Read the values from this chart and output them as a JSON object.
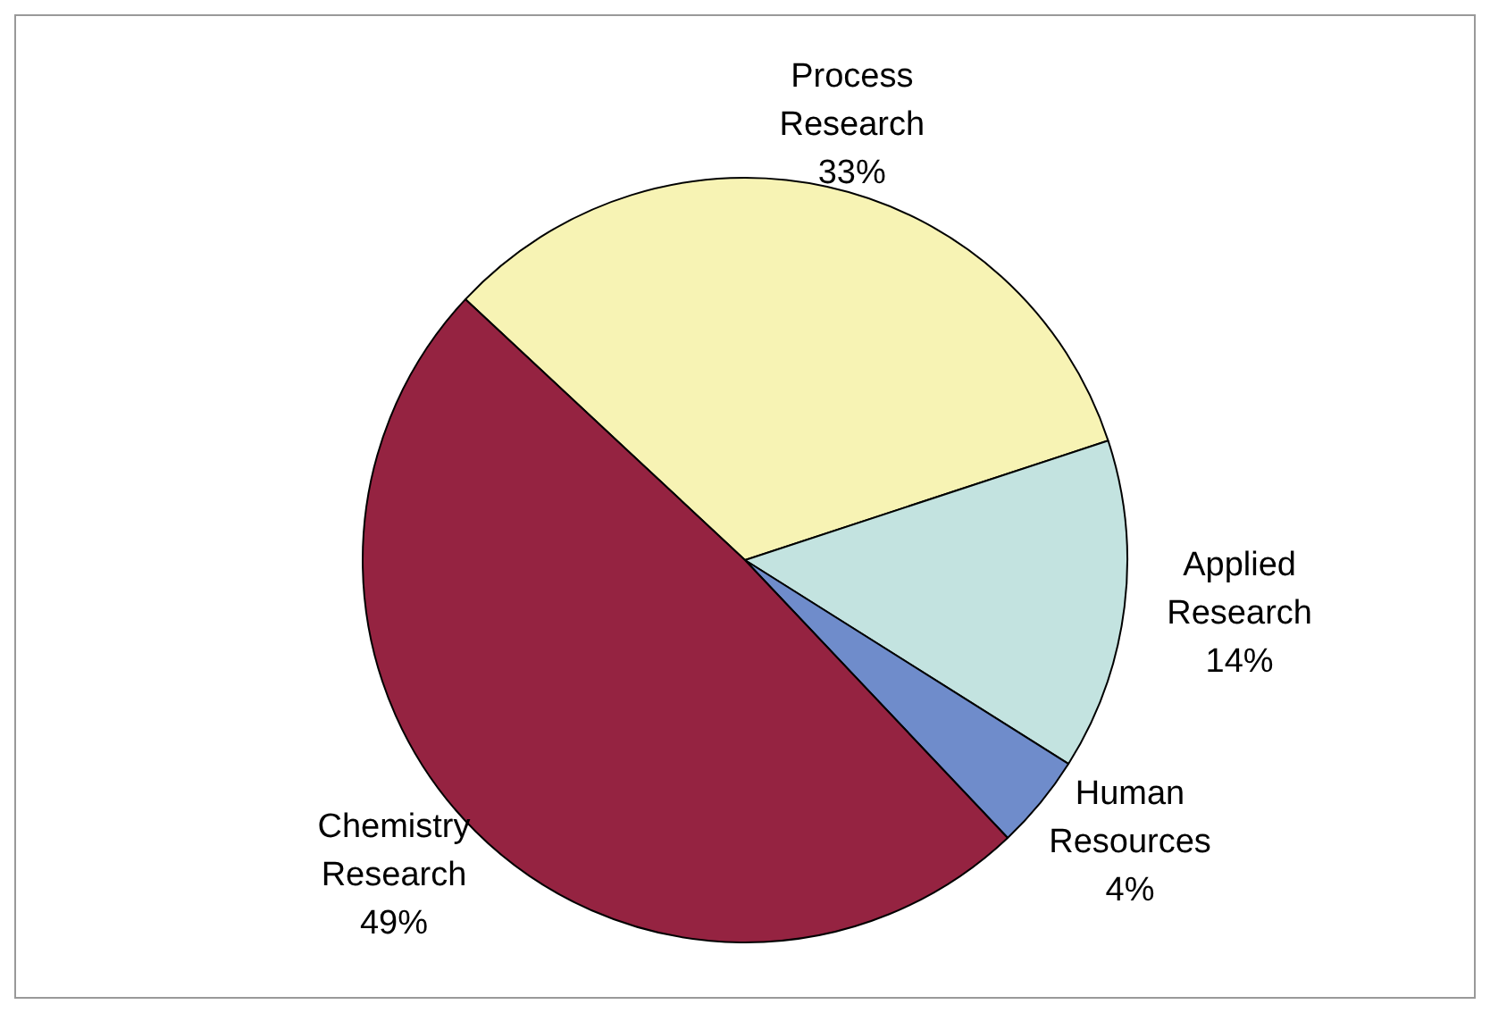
{
  "chart_data": {
    "type": "pie",
    "categories": [
      "Process Research",
      "Applied Research",
      "Human Resources",
      "Chemistry Research"
    ],
    "values": [
      33,
      14,
      4,
      49
    ],
    "colors": [
      "#f7f3b4",
      "#c3e3e0",
      "#6f8ccb",
      "#952341"
    ],
    "value_labels": [
      "33%",
      "14%",
      "4%",
      "49%"
    ],
    "legend": false
  }
}
